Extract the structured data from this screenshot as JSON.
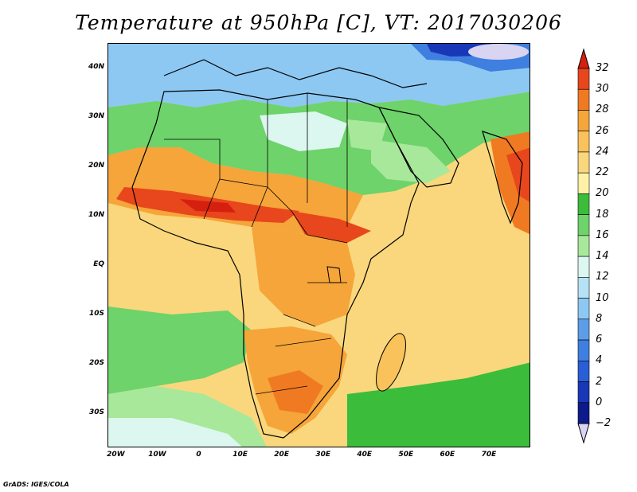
{
  "title": "Temperature at 950hPa [C], VT: 2017030206",
  "credit": "GrADS: IGES/COLA",
  "map": {
    "lon_range": [
      -22,
      80
    ],
    "lat_range": [
      -37,
      45
    ],
    "lat_ticks": [
      {
        "value": 40,
        "label": "40N"
      },
      {
        "value": 30,
        "label": "30N"
      },
      {
        "value": 20,
        "label": "20N"
      },
      {
        "value": 10,
        "label": "10N"
      },
      {
        "value": 0,
        "label": "EQ"
      },
      {
        "value": -10,
        "label": "10S"
      },
      {
        "value": -20,
        "label": "20S"
      },
      {
        "value": -30,
        "label": "30S"
      }
    ],
    "lon_ticks": [
      {
        "value": -20,
        "label": "20W"
      },
      {
        "value": -10,
        "label": "10W"
      },
      {
        "value": 0,
        "label": "0"
      },
      {
        "value": 10,
        "label": "10E"
      },
      {
        "value": 20,
        "label": "20E"
      },
      {
        "value": 30,
        "label": "30E"
      },
      {
        "value": 40,
        "label": "40E"
      },
      {
        "value": 50,
        "label": "50E"
      },
      {
        "value": 60,
        "label": "60E"
      },
      {
        "value": 70,
        "label": "70E"
      }
    ],
    "colors": {
      "ocean_warm": "#fad77c",
      "land_hot": "#f5a53a",
      "hotspot": "#e8461c",
      "green": "#58c858",
      "light_green": "#9de28d",
      "cold_blue": "#5d9ce8",
      "pale_blue": "#c7eef7",
      "border": "#000000"
    }
  },
  "colorbar": {
    "levels": [
      {
        "value": 32,
        "label": "32",
        "color": "#d6200f"
      },
      {
        "value": 30,
        "label": "30",
        "color": "#e8461c"
      },
      {
        "value": 28,
        "label": "28",
        "color": "#f07a22"
      },
      {
        "value": 26,
        "label": "26",
        "color": "#f5a53a"
      },
      {
        "value": 24,
        "label": "24",
        "color": "#f9c25a"
      },
      {
        "value": 22,
        "label": "22",
        "color": "#fad77c"
      },
      {
        "value": 20,
        "label": "20",
        "color": "#fff2a6"
      },
      {
        "value": 18,
        "label": "18",
        "color": "#3bbd3b"
      },
      {
        "value": 16,
        "label": "16",
        "color": "#6dd36a"
      },
      {
        "value": 14,
        "label": "14",
        "color": "#a8e89a"
      },
      {
        "value": 12,
        "label": "12",
        "color": "#dcf7ef"
      },
      {
        "value": 10,
        "label": "10",
        "color": "#b5e2f7"
      },
      {
        "value": 8,
        "label": "8",
        "color": "#8cc8f2"
      },
      {
        "value": 6,
        "label": "6",
        "color": "#5d9ce8"
      },
      {
        "value": 4,
        "label": "4",
        "color": "#3f7fe0"
      },
      {
        "value": 2,
        "label": "2",
        "color": "#2a5ed6"
      },
      {
        "value": 0,
        "label": "0",
        "color": "#1838b8"
      },
      {
        "value": -2,
        "label": "−2",
        "color": "#0c1a8c"
      }
    ],
    "overflow_top_color": "#d6200f",
    "underflow_bottom_color": "#d8d4f2"
  }
}
